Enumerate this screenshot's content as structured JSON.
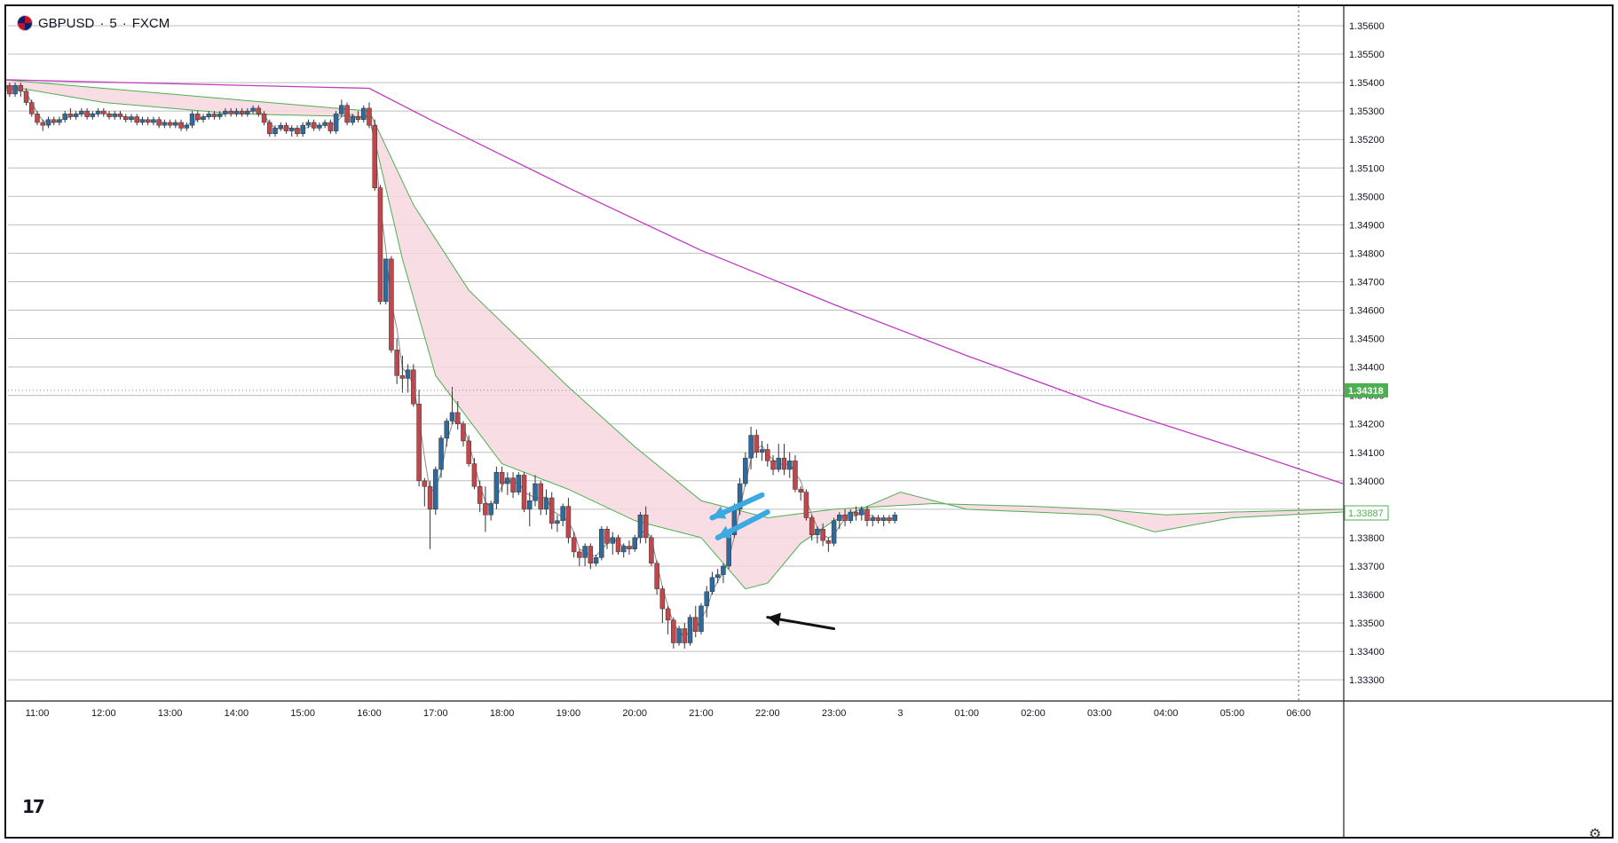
{
  "header": {
    "symbol": "GBPUSD",
    "sep1": "·",
    "interval": "5",
    "sep2": "·",
    "source": "FXCM"
  },
  "logo": "17",
  "icons": {
    "flag": "uk-us-flag-icon",
    "settings": "gear-icon"
  },
  "colors": {
    "up": "#2f6a9f",
    "down": "#c0474b",
    "ma_fast": "#8a8a8a",
    "band_fill": "#f8d7e0",
    "band_line": "#4caf50",
    "ma_slow": "#c23ac2",
    "last_price_bg": "#4caf50",
    "arrow_blue": "#3ca9e0",
    "arrow_black": "#111111"
  },
  "chart_data": {
    "type": "candlestick",
    "title": "GBPUSD · 5 · FXCM",
    "ylim": [
      1.3325,
      1.3565
    ],
    "yticks": [
      "1.35600",
      "1.35500",
      "1.35400",
      "1.35300",
      "1.35200",
      "1.35100",
      "1.35000",
      "1.34900",
      "1.34800",
      "1.34700",
      "1.34600",
      "1.34500",
      "1.34400",
      "1.34300",
      "1.34200",
      "1.34100",
      "1.34000",
      "1.33900",
      "1.33800",
      "1.33700",
      "1.33600",
      "1.33500",
      "1.33400",
      "1.33300"
    ],
    "xticks": [
      "11:00",
      "12:00",
      "13:00",
      "14:00",
      "15:00",
      "16:00",
      "17:00",
      "18:00",
      "19:00",
      "20:00",
      "21:00",
      "22:00",
      "23:00",
      "3",
      "01:00",
      "02:00",
      "03:00",
      "04:00",
      "05:00",
      "06:00"
    ],
    "grid": true,
    "last_price_label": "1.34318",
    "last_price": 1.34318,
    "current_price_label": "1.33887",
    "current_price": 1.33887,
    "series": [
      {
        "name": "",
        "type": "ma_slow",
        "x": [
          "10:30",
          "16:00",
          "17:00",
          "19:00",
          "21:00",
          "23:00",
          "01:00",
          "03:00",
          "05:00",
          "06:40"
        ],
        "values": [
          1.3541,
          1.3538,
          1.3526,
          1.3503,
          1.3481,
          1.3462,
          1.3444,
          1.3427,
          1.3412,
          1.3399
        ]
      },
      {
        "name": "",
        "type": "band_upper",
        "x": [
          "10:30",
          "12:00",
          "14:00",
          "16:00",
          "16:40",
          "17:30",
          "19:00",
          "20:00",
          "21:00",
          "22:00",
          "23:00",
          "00:30",
          "02:00",
          "03:00",
          "04:00",
          "05:00",
          "06:40"
        ],
        "values": [
          1.3541,
          1.3538,
          1.3534,
          1.353,
          1.3497,
          1.3467,
          1.3433,
          1.3412,
          1.3393,
          1.3387,
          1.339,
          1.3392,
          1.3391,
          1.339,
          1.3388,
          1.3389,
          1.339
        ]
      },
      {
        "name": "",
        "type": "band_lower",
        "x": [
          "10:30",
          "12:00",
          "14:00",
          "16:00",
          "16:30",
          "17:00",
          "18:00",
          "19:00",
          "20:00",
          "21:00",
          "21:40",
          "22:00",
          "22:30",
          "23:00",
          "00:00",
          "01:00",
          "02:00",
          "03:00",
          "03:50",
          "05:00",
          "06:40"
        ],
        "values": [
          1.3539,
          1.3533,
          1.3529,
          1.3528,
          1.3478,
          1.3437,
          1.3406,
          1.3397,
          1.3386,
          1.338,
          1.3362,
          1.3364,
          1.3378,
          1.3386,
          1.3396,
          1.339,
          1.3389,
          1.3388,
          1.3382,
          1.3387,
          1.3389
        ]
      }
    ],
    "candles": [
      [
        "10:30",
        1.3537,
        1.354,
        1.3535,
        1.3539
      ],
      [
        "10:35",
        1.3539,
        1.354,
        1.3535,
        1.3536
      ],
      [
        "10:40",
        1.3536,
        1.354,
        1.3535,
        1.3539
      ],
      [
        "10:45",
        1.3539,
        1.354,
        1.3535,
        1.3537
      ],
      [
        "10:50",
        1.3537,
        1.3538,
        1.3532,
        1.3533
      ],
      [
        "10:55",
        1.3533,
        1.3534,
        1.3528,
        1.3529
      ],
      [
        "11:00",
        1.3529,
        1.353,
        1.3525,
        1.3526
      ],
      [
        "11:05",
        1.3526,
        1.3527,
        1.3523,
        1.3525
      ],
      [
        "11:10",
        1.3525,
        1.3528,
        1.3524,
        1.3527
      ],
      [
        "11:15",
        1.3527,
        1.3528,
        1.3525,
        1.3526
      ],
      [
        "11:20",
        1.3526,
        1.3528,
        1.3525,
        1.3527
      ],
      [
        "11:25",
        1.3527,
        1.353,
        1.3526,
        1.3529
      ],
      [
        "11:30",
        1.3529,
        1.3531,
        1.3527,
        1.3528
      ],
      [
        "11:35",
        1.3528,
        1.353,
        1.3527,
        1.3529
      ],
      [
        "11:40",
        1.3529,
        1.3531,
        1.3528,
        1.353
      ],
      [
        "11:45",
        1.353,
        1.3531,
        1.3527,
        1.3528
      ],
      [
        "11:50",
        1.3528,
        1.353,
        1.3527,
        1.3529
      ],
      [
        "11:55",
        1.3529,
        1.3531,
        1.3528,
        1.353
      ],
      [
        "12:00",
        1.353,
        1.3531,
        1.3528,
        1.3529
      ],
      [
        "12:05",
        1.3529,
        1.353,
        1.3527,
        1.3528
      ],
      [
        "12:10",
        1.3528,
        1.353,
        1.3527,
        1.3529
      ],
      [
        "12:15",
        1.3529,
        1.353,
        1.3527,
        1.3528
      ],
      [
        "12:20",
        1.3528,
        1.3529,
        1.3526,
        1.3527
      ],
      [
        "12:25",
        1.3527,
        1.3529,
        1.3526,
        1.3528
      ],
      [
        "12:30",
        1.3528,
        1.3529,
        1.3525,
        1.3526
      ],
      [
        "12:35",
        1.3526,
        1.3528,
        1.3525,
        1.3527
      ],
      [
        "12:40",
        1.3527,
        1.3528,
        1.3525,
        1.3526
      ],
      [
        "12:45",
        1.3526,
        1.3528,
        1.3525,
        1.3527
      ],
      [
        "12:50",
        1.3527,
        1.3528,
        1.3524,
        1.3525
      ],
      [
        "12:55",
        1.3525,
        1.3527,
        1.3524,
        1.3526
      ],
      [
        "13:00",
        1.3526,
        1.3527,
        1.3524,
        1.3525
      ],
      [
        "13:05",
        1.3525,
        1.3527,
        1.3524,
        1.3526
      ],
      [
        "13:10",
        1.3526,
        1.3527,
        1.3523,
        1.3524
      ],
      [
        "13:15",
        1.3524,
        1.3526,
        1.3523,
        1.3525
      ],
      [
        "13:20",
        1.3525,
        1.353,
        1.3524,
        1.3529
      ],
      [
        "13:25",
        1.3529,
        1.353,
        1.3526,
        1.3527
      ],
      [
        "13:30",
        1.3527,
        1.3529,
        1.3526,
        1.3528
      ],
      [
        "13:35",
        1.3528,
        1.353,
        1.3527,
        1.3529
      ],
      [
        "13:40",
        1.3529,
        1.353,
        1.3527,
        1.3528
      ],
      [
        "13:45",
        1.3528,
        1.353,
        1.3527,
        1.3529
      ],
      [
        "13:50",
        1.3529,
        1.3531,
        1.3528,
        1.353
      ],
      [
        "13:55",
        1.353,
        1.3531,
        1.3528,
        1.3529
      ],
      [
        "14:00",
        1.3529,
        1.3531,
        1.3528,
        1.353
      ],
      [
        "14:05",
        1.353,
        1.3531,
        1.3528,
        1.3529
      ],
      [
        "14:10",
        1.3529,
        1.3531,
        1.3528,
        1.353
      ],
      [
        "14:15",
        1.353,
        1.3532,
        1.3529,
        1.3531
      ],
      [
        "14:20",
        1.3531,
        1.3532,
        1.3528,
        1.3529
      ],
      [
        "14:25",
        1.3529,
        1.353,
        1.3525,
        1.3526
      ],
      [
        "14:30",
        1.3526,
        1.3527,
        1.3521,
        1.3522
      ],
      [
        "14:35",
        1.3522,
        1.3525,
        1.3521,
        1.3524
      ],
      [
        "14:40",
        1.3524,
        1.3526,
        1.3523,
        1.3525
      ],
      [
        "14:45",
        1.3525,
        1.3526,
        1.3522,
        1.3523
      ],
      [
        "14:50",
        1.3523,
        1.3525,
        1.3521,
        1.3524
      ],
      [
        "14:55",
        1.3524,
        1.3525,
        1.3521,
        1.3522
      ],
      [
        "15:00",
        1.3522,
        1.3526,
        1.3521,
        1.3525
      ],
      [
        "15:05",
        1.3525,
        1.3527,
        1.3524,
        1.3526
      ],
      [
        "15:10",
        1.3526,
        1.3527,
        1.3523,
        1.3524
      ],
      [
        "15:15",
        1.3524,
        1.3526,
        1.3523,
        1.3525
      ],
      [
        "15:20",
        1.3525,
        1.3527,
        1.3524,
        1.3526
      ],
      [
        "15:25",
        1.3526,
        1.3527,
        1.3522,
        1.3523
      ],
      [
        "15:30",
        1.3523,
        1.353,
        1.3522,
        1.3529
      ],
      [
        "15:35",
        1.3529,
        1.3534,
        1.3528,
        1.3532
      ],
      [
        "15:40",
        1.3532,
        1.3533,
        1.3525,
        1.3526
      ],
      [
        "15:45",
        1.3526,
        1.3529,
        1.3525,
        1.3528
      ],
      [
        "15:50",
        1.3528,
        1.353,
        1.3526,
        1.3527
      ],
      [
        "15:55",
        1.3527,
        1.3532,
        1.3526,
        1.3531
      ],
      [
        "16:00",
        1.3531,
        1.3533,
        1.3524,
        1.3525
      ],
      [
        "16:05",
        1.3525,
        1.3527,
        1.3502,
        1.3503
      ],
      [
        "16:10",
        1.3503,
        1.3504,
        1.3462,
        1.3463
      ],
      [
        "16:15",
        1.3463,
        1.3478,
        1.3462,
        1.3478
      ],
      [
        "16:20",
        1.3478,
        1.3479,
        1.3445,
        1.3446
      ],
      [
        "16:25",
        1.3446,
        1.345,
        1.3434,
        1.3437
      ],
      [
        "16:30",
        1.3437,
        1.3444,
        1.3431,
        1.3436
      ],
      [
        "16:35",
        1.3436,
        1.3441,
        1.3431,
        1.3439
      ],
      [
        "16:40",
        1.3439,
        1.3441,
        1.3426,
        1.3427
      ],
      [
        "16:45",
        1.3427,
        1.3432,
        1.3398,
        1.34
      ],
      [
        "16:50",
        1.34,
        1.3401,
        1.3391,
        1.3398
      ],
      [
        "16:55",
        1.3398,
        1.34,
        1.3376,
        1.339
      ],
      [
        "17:00",
        1.339,
        1.3405,
        1.3388,
        1.3404
      ],
      [
        "17:05",
        1.3404,
        1.3416,
        1.3401,
        1.3415
      ],
      [
        "17:10",
        1.3415,
        1.3422,
        1.3412,
        1.3421
      ],
      [
        "17:15",
        1.3421,
        1.3433,
        1.342,
        1.3424
      ],
      [
        "17:20",
        1.3424,
        1.3428,
        1.3418,
        1.342
      ],
      [
        "17:25",
        1.342,
        1.3421,
        1.3412,
        1.3414
      ],
      [
        "17:30",
        1.3414,
        1.3416,
        1.3405,
        1.3406
      ],
      [
        "17:35",
        1.3406,
        1.3408,
        1.3397,
        1.3398
      ],
      [
        "17:40",
        1.3398,
        1.34,
        1.3389,
        1.3392
      ],
      [
        "17:45",
        1.3392,
        1.3398,
        1.3382,
        1.3388
      ],
      [
        "17:50",
        1.3388,
        1.3393,
        1.3386,
        1.3392
      ],
      [
        "17:55",
        1.3392,
        1.3405,
        1.339,
        1.3403
      ],
      [
        "18:00",
        1.3403,
        1.3405,
        1.3396,
        1.3399
      ],
      [
        "18:05",
        1.3399,
        1.3403,
        1.3395,
        1.3401
      ],
      [
        "18:10",
        1.3401,
        1.3403,
        1.3394,
        1.3396
      ],
      [
        "18:15",
        1.3396,
        1.3403,
        1.3395,
        1.3402
      ],
      [
        "18:20",
        1.3402,
        1.3403,
        1.3389,
        1.339
      ],
      [
        "18:25",
        1.339,
        1.3396,
        1.3384,
        1.3393
      ],
      [
        "18:30",
        1.3393,
        1.3402,
        1.3391,
        1.3399
      ],
      [
        "18:35",
        1.3399,
        1.34,
        1.3388,
        1.339
      ],
      [
        "18:40",
        1.339,
        1.3397,
        1.3388,
        1.3394
      ],
      [
        "18:45",
        1.3394,
        1.3396,
        1.3383,
        1.3385
      ],
      [
        "18:50",
        1.3385,
        1.3388,
        1.3382,
        1.3386
      ],
      [
        "18:55",
        1.3386,
        1.3392,
        1.3384,
        1.3391
      ],
      [
        "19:00",
        1.3391,
        1.3394,
        1.3378,
        1.338
      ],
      [
        "19:05",
        1.338,
        1.3382,
        1.3373,
        1.3375
      ],
      [
        "19:10",
        1.3375,
        1.3376,
        1.337,
        1.3373
      ],
      [
        "19:15",
        1.3373,
        1.3378,
        1.337,
        1.3377
      ],
      [
        "19:20",
        1.3377,
        1.3378,
        1.3369,
        1.3371
      ],
      [
        "19:25",
        1.3371,
        1.3374,
        1.337,
        1.3373
      ],
      [
        "19:30",
        1.3373,
        1.3384,
        1.3372,
        1.3383
      ],
      [
        "19:35",
        1.3383,
        1.3384,
        1.3376,
        1.3378
      ],
      [
        "19:40",
        1.3378,
        1.3382,
        1.3374,
        1.338
      ],
      [
        "19:45",
        1.338,
        1.3381,
        1.3374,
        1.3375
      ],
      [
        "19:50",
        1.3375,
        1.3378,
        1.3373,
        1.3377
      ],
      [
        "19:55",
        1.3377,
        1.3379,
        1.3374,
        1.3376
      ],
      [
        "20:00",
        1.3376,
        1.3381,
        1.3375,
        1.338
      ],
      [
        "20:05",
        1.338,
        1.3389,
        1.3378,
        1.3388
      ],
      [
        "20:10",
        1.3388,
        1.3391,
        1.3378,
        1.338
      ],
      [
        "20:15",
        1.338,
        1.3381,
        1.337,
        1.3371
      ],
      [
        "20:20",
        1.3371,
        1.3372,
        1.336,
        1.3362
      ],
      [
        "20:25",
        1.3362,
        1.3363,
        1.335,
        1.3355
      ],
      [
        "20:30",
        1.3355,
        1.3356,
        1.3346,
        1.3351
      ],
      [
        "20:35",
        1.3351,
        1.3352,
        1.3341,
        1.3343
      ],
      [
        "20:40",
        1.3343,
        1.3349,
        1.3342,
        1.3348
      ],
      [
        "20:45",
        1.3348,
        1.335,
        1.3341,
        1.3343
      ],
      [
        "20:50",
        1.3343,
        1.3353,
        1.3342,
        1.3352
      ],
      [
        "20:55",
        1.3352,
        1.3356,
        1.3345,
        1.3347
      ],
      [
        "21:00",
        1.3347,
        1.3357,
        1.3346,
        1.3356
      ],
      [
        "21:05",
        1.3356,
        1.3363,
        1.3352,
        1.3361
      ],
      [
        "21:10",
        1.3361,
        1.3368,
        1.336,
        1.3366
      ],
      [
        "21:15",
        1.3366,
        1.3369,
        1.3364,
        1.3367
      ],
      [
        "21:20",
        1.3367,
        1.3371,
        1.3364,
        1.337
      ],
      [
        "21:25",
        1.337,
        1.3382,
        1.3369,
        1.3381
      ],
      [
        "21:30",
        1.3381,
        1.3392,
        1.338,
        1.339
      ],
      [
        "21:35",
        1.339,
        1.3401,
        1.3388,
        1.3399
      ],
      [
        "21:40",
        1.3399,
        1.341,
        1.3398,
        1.3408
      ],
      [
        "21:45",
        1.3408,
        1.3419,
        1.3404,
        1.3416
      ],
      [
        "21:50",
        1.3416,
        1.3418,
        1.3408,
        1.341
      ],
      [
        "21:55",
        1.341,
        1.3414,
        1.3407,
        1.3411
      ],
      [
        "22:00",
        1.3411,
        1.3413,
        1.3405,
        1.3407
      ],
      [
        "22:05",
        1.3407,
        1.3409,
        1.3402,
        1.3404
      ],
      [
        "22:10",
        1.3404,
        1.3413,
        1.3403,
        1.3408
      ],
      [
        "22:15",
        1.3408,
        1.3413,
        1.3402,
        1.3404
      ],
      [
        "22:20",
        1.3404,
        1.341,
        1.3401,
        1.3407
      ],
      [
        "22:25",
        1.3407,
        1.3409,
        1.3396,
        1.3397
      ],
      [
        "22:30",
        1.3397,
        1.3398,
        1.3393,
        1.3396
      ],
      [
        "22:35",
        1.3396,
        1.3397,
        1.3386,
        1.3387
      ],
      [
        "22:40",
        1.3387,
        1.3388,
        1.3379,
        1.3381
      ],
      [
        "22:45",
        1.3381,
        1.3384,
        1.3378,
        1.3383
      ],
      [
        "22:50",
        1.3383,
        1.3385,
        1.3377,
        1.3379
      ],
      [
        "22:55",
        1.3379,
        1.338,
        1.3375,
        1.3378
      ],
      [
        "23:00",
        1.3378,
        1.3387,
        1.3377,
        1.3386
      ],
      [
        "23:05",
        1.3386,
        1.3389,
        1.3383,
        1.3388
      ],
      [
        "23:10",
        1.3388,
        1.339,
        1.3384,
        1.3386
      ],
      [
        "23:15",
        1.3386,
        1.339,
        1.3385,
        1.3389
      ],
      [
        "23:20",
        1.3389,
        1.3391,
        1.3386,
        1.3388
      ],
      [
        "23:25",
        1.3388,
        1.3391,
        1.3386,
        1.339
      ],
      [
        "23:30",
        1.339,
        1.3391,
        1.3384,
        1.3386
      ],
      [
        "23:35",
        1.3386,
        1.3388,
        1.3384,
        1.3387
      ],
      [
        "23:40",
        1.3387,
        1.3388,
        1.3385,
        1.3386
      ],
      [
        "23:45",
        1.3386,
        1.3388,
        1.3384,
        1.3387
      ],
      [
        "23:50",
        1.3387,
        1.3388,
        1.3385,
        1.3386
      ],
      [
        "23:55",
        1.3386,
        1.3389,
        1.3385,
        1.3388
      ]
    ],
    "annotations": [
      {
        "type": "arrow",
        "color": "#3ca9e0",
        "from": [
          "21:55",
          1.3395
        ],
        "to": [
          "21:10",
          1.3387
        ]
      },
      {
        "type": "arrow",
        "color": "#3ca9e0",
        "from": [
          "22:00",
          1.3389
        ],
        "to": [
          "21:15",
          1.338
        ]
      },
      {
        "type": "arrow",
        "color": "#111111",
        "from": [
          "23:00",
          1.3348
        ],
        "to": [
          "22:00",
          1.3352
        ]
      }
    ]
  }
}
